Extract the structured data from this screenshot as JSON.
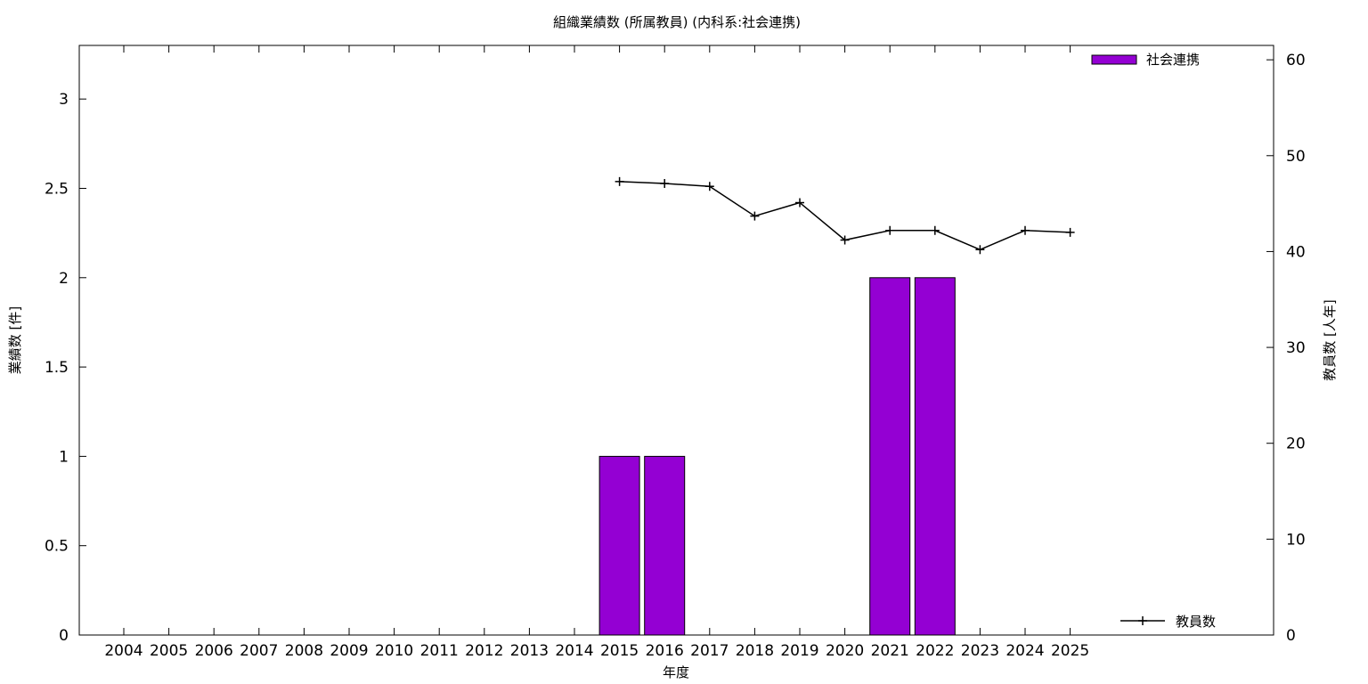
{
  "chart_data": {
    "type": "bar",
    "title": "組織業績数 (所属教員) (内科系:社会連携)",
    "xlabel": "年度",
    "ylabel": "業績数 [件]",
    "y2label": "教員数 [人年]",
    "categories": [
      "2004",
      "2005",
      "2006",
      "2007",
      "2008",
      "2009",
      "2010",
      "2011",
      "2012",
      "2013",
      "2014",
      "2015",
      "2016",
      "2017",
      "2018",
      "2019",
      "2020",
      "2021",
      "2022",
      "2023",
      "2024",
      "2025"
    ],
    "ylim": [
      0,
      3.3
    ],
    "y2lim": [
      0,
      61.5
    ],
    "yticks": [
      "0",
      "0.5",
      "1",
      "1.5",
      "2",
      "2.5",
      "3"
    ],
    "y2ticks": [
      "0",
      "10",
      "20",
      "30",
      "40",
      "50",
      "60"
    ],
    "series": [
      {
        "name": "社会連携",
        "type": "bar",
        "axis": "left",
        "color": "#9400d3",
        "values": [
          0,
          0,
          0,
          0,
          0,
          0,
          0,
          0,
          0,
          0,
          0,
          1,
          1,
          0,
          0,
          0,
          0,
          2,
          2,
          0,
          0,
          0
        ]
      },
      {
        "name": "教員数",
        "type": "line",
        "axis": "right",
        "color": "#000000",
        "marker": "plus",
        "values": [
          null,
          null,
          null,
          null,
          null,
          null,
          null,
          null,
          null,
          null,
          null,
          47.3,
          47.1,
          46.8,
          43.7,
          45.1,
          41.2,
          42.2,
          42.2,
          40.2,
          42.2,
          42.0
        ]
      }
    ],
    "legend_positions": {
      "bars": "top-right",
      "line": "bottom-right"
    },
    "grid": false
  }
}
